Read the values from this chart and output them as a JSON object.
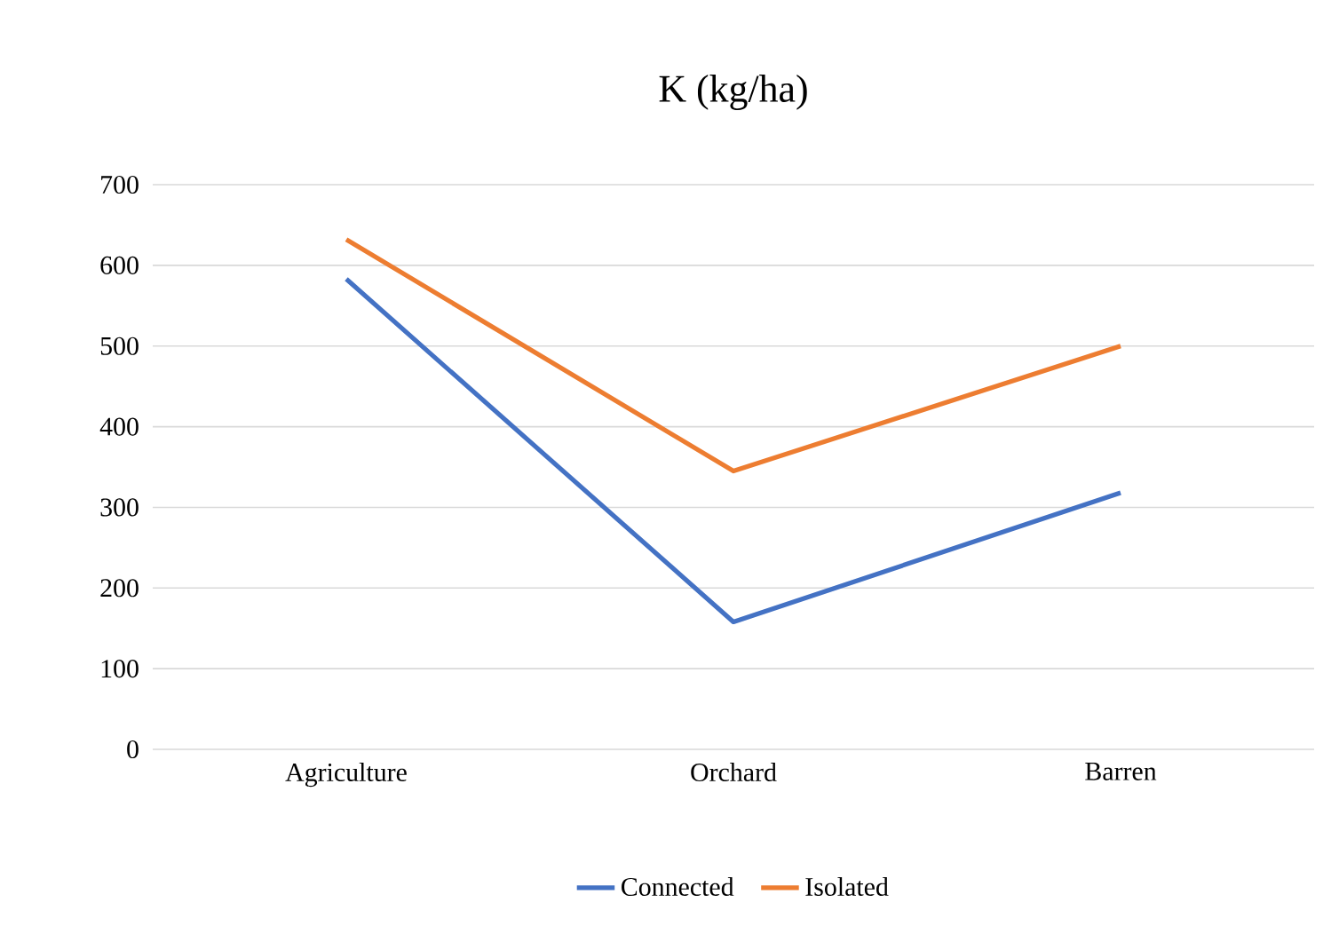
{
  "chart_data": {
    "type": "line",
    "title": "K (kg/ha)",
    "categories": [
      "Agriculture",
      "Orchard",
      "Barren"
    ],
    "series": [
      {
        "name": "Connected",
        "color": "#4472c4",
        "values": [
          583,
          158,
          318
        ]
      },
      {
        "name": "Isolated",
        "color": "#ed7d31",
        "values": [
          632,
          345,
          500
        ]
      }
    ],
    "ylim": [
      0,
      700
    ],
    "yticks": [
      0,
      100,
      200,
      300,
      400,
      500,
      600,
      700
    ],
    "grid": "y",
    "legend": "bottom"
  }
}
